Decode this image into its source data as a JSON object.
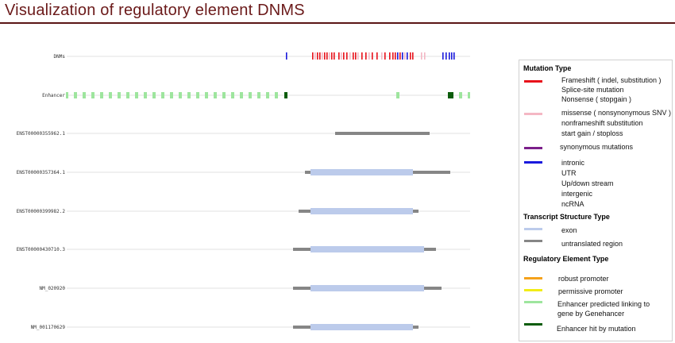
{
  "title": "Visualization of regulatory element DNMS",
  "colors": {
    "frameshift": "#e8121b",
    "missense": "#f4b7c4",
    "synonymous": "#7b1f8a",
    "intronic": "#1a1add",
    "exon": "#bccbeb",
    "utr": "#868686",
    "robust_promoter": "#f5a21b",
    "permissive_promoter": "#f2ec17",
    "enhancer_predicted": "#9ee59e",
    "enhancer_hit": "#0b5c0b",
    "title": "#6b1a1a"
  },
  "tracks": {
    "dnms": {
      "label": "DNMs",
      "marks": [
        {
          "x": 360,
          "type": "intronic"
        },
        {
          "x": 393,
          "type": "frameshift"
        },
        {
          "x": 396,
          "type": "missense"
        },
        {
          "x": 399,
          "type": "frameshift"
        },
        {
          "x": 402,
          "type": "frameshift"
        },
        {
          "x": 405,
          "type": "missense"
        },
        {
          "x": 408,
          "type": "frameshift"
        },
        {
          "x": 411,
          "type": "frameshift"
        },
        {
          "x": 414,
          "type": "missense"
        },
        {
          "x": 417,
          "type": "frameshift"
        },
        {
          "x": 420,
          "type": "frameshift"
        },
        {
          "x": 426,
          "type": "frameshift"
        },
        {
          "x": 429,
          "type": "missense"
        },
        {
          "x": 432,
          "type": "frameshift"
        },
        {
          "x": 436,
          "type": "frameshift"
        },
        {
          "x": 440,
          "type": "missense"
        },
        {
          "x": 444,
          "type": "frameshift"
        },
        {
          "x": 447,
          "type": "frameshift"
        },
        {
          "x": 450,
          "type": "missense"
        },
        {
          "x": 455,
          "type": "frameshift"
        },
        {
          "x": 460,
          "type": "frameshift"
        },
        {
          "x": 464,
          "type": "missense"
        },
        {
          "x": 468,
          "type": "frameshift"
        },
        {
          "x": 474,
          "type": "frameshift"
        },
        {
          "x": 480,
          "type": "missense"
        },
        {
          "x": 484,
          "type": "frameshift"
        },
        {
          "x": 490,
          "type": "frameshift"
        },
        {
          "x": 494,
          "type": "frameshift"
        },
        {
          "x": 497,
          "type": "frameshift"
        },
        {
          "x": 500,
          "type": "intronic"
        },
        {
          "x": 503,
          "type": "frameshift"
        },
        {
          "x": 506,
          "type": "intronic"
        },
        {
          "x": 509,
          "type": "missense"
        },
        {
          "x": 512,
          "type": "intronic"
        },
        {
          "x": 516,
          "type": "frameshift"
        },
        {
          "x": 519,
          "type": "frameshift"
        },
        {
          "x": 530,
          "type": "missense"
        },
        {
          "x": 534,
          "type": "missense"
        },
        {
          "x": 557,
          "type": "intronic"
        },
        {
          "x": 561,
          "type": "intronic"
        },
        {
          "x": 565,
          "type": "intronic"
        },
        {
          "x": 568,
          "type": "intronic"
        },
        {
          "x": 571,
          "type": "intronic"
        }
      ]
    },
    "enhancer": {
      "label": "Enhancer",
      "blocks": [
        {
          "x": 83,
          "w": 3,
          "type": "enhancer_predicted"
        },
        {
          "x": 93,
          "w": 4,
          "type": "enhancer_predicted"
        },
        {
          "x": 104,
          "w": 4,
          "type": "enhancer_predicted"
        },
        {
          "x": 115,
          "w": 4,
          "type": "enhancer_predicted"
        },
        {
          "x": 126,
          "w": 4,
          "type": "enhancer_predicted"
        },
        {
          "x": 137,
          "w": 4,
          "type": "enhancer_predicted"
        },
        {
          "x": 148,
          "w": 4,
          "type": "enhancer_predicted"
        },
        {
          "x": 159,
          "w": 4,
          "type": "enhancer_predicted"
        },
        {
          "x": 170,
          "w": 4,
          "type": "enhancer_predicted"
        },
        {
          "x": 181,
          "w": 4,
          "type": "enhancer_predicted"
        },
        {
          "x": 192,
          "w": 4,
          "type": "enhancer_predicted"
        },
        {
          "x": 203,
          "w": 4,
          "type": "enhancer_predicted"
        },
        {
          "x": 214,
          "w": 4,
          "type": "enhancer_predicted"
        },
        {
          "x": 225,
          "w": 4,
          "type": "enhancer_predicted"
        },
        {
          "x": 236,
          "w": 4,
          "type": "enhancer_predicted"
        },
        {
          "x": 247,
          "w": 4,
          "type": "enhancer_predicted"
        },
        {
          "x": 258,
          "w": 4,
          "type": "enhancer_predicted"
        },
        {
          "x": 269,
          "w": 4,
          "type": "enhancer_predicted"
        },
        {
          "x": 280,
          "w": 4,
          "type": "enhancer_predicted"
        },
        {
          "x": 291,
          "w": 4,
          "type": "enhancer_predicted"
        },
        {
          "x": 302,
          "w": 4,
          "type": "enhancer_predicted"
        },
        {
          "x": 313,
          "w": 4,
          "type": "enhancer_predicted"
        },
        {
          "x": 324,
          "w": 4,
          "type": "enhancer_predicted"
        },
        {
          "x": 335,
          "w": 4,
          "type": "enhancer_predicted"
        },
        {
          "x": 346,
          "w": 4,
          "type": "enhancer_predicted"
        },
        {
          "x": 358,
          "w": 4,
          "type": "enhancer_hit"
        },
        {
          "x": 499,
          "w": 4,
          "type": "enhancer_predicted"
        },
        {
          "x": 564,
          "w": 7,
          "type": "enhancer_hit"
        },
        {
          "x": 578,
          "w": 4,
          "type": "enhancer_predicted"
        },
        {
          "x": 589,
          "w": 3,
          "type": "enhancer_predicted"
        }
      ]
    },
    "transcripts": [
      {
        "label": "ENST00000355962.1",
        "utr": [
          422,
          541
        ],
        "exon": null
      },
      {
        "label": "ENST00000357364.1",
        "utr": [
          384,
          567
        ],
        "exon": [
          391,
          520
        ]
      },
      {
        "label": "ENST00000399982.2",
        "utr": [
          376,
          527
        ],
        "exon": [
          391,
          520
        ]
      },
      {
        "label": "ENST00000430710.3",
        "utr": [
          369,
          549
        ],
        "exon": [
          391,
          534
        ]
      },
      {
        "label": "NM_020920",
        "utr": [
          369,
          556
        ],
        "exon": [
          391,
          534
        ]
      },
      {
        "label": "NM_001170629",
        "utr": [
          369,
          527
        ],
        "exon": [
          391,
          520
        ]
      }
    ]
  },
  "legend": {
    "mutation_type": {
      "header": "Mutation Type",
      "items": [
        {
          "color": "frameshift",
          "lines": [
            "Frameshift ( indel, substitution )",
            "Splice-site mutation",
            "Nonsense ( stopgain )"
          ]
        },
        {
          "color": "missense",
          "lines": [
            "missense ( nonsynonymous SNV )",
            "nonframeshift substitution",
            "start gain / stoploss"
          ]
        },
        {
          "color": "synonymous",
          "lines": [
            "synonymous mutations"
          ]
        },
        {
          "color": "intronic",
          "lines": [
            "intronic",
            "UTR",
            "Up/down stream",
            "intergenic",
            "ncRNA"
          ]
        }
      ]
    },
    "transcript_structure": {
      "header": "Transcript Structure Type",
      "items": [
        {
          "color": "exon",
          "lines": [
            "exon"
          ]
        },
        {
          "color": "utr",
          "lines": [
            "untranslated region"
          ]
        }
      ]
    },
    "regulatory_element": {
      "header": "Regulatory Element Type",
      "items": [
        {
          "color": "robust_promoter",
          "lines": [
            "robust promoter"
          ]
        },
        {
          "color": "permissive_promoter",
          "lines": [
            "permissive promoter"
          ]
        },
        {
          "color": "enhancer_predicted",
          "lines": [
            "Enhancer predicted linking to",
            "gene by Genehancer"
          ]
        },
        {
          "color": "enhancer_hit",
          "lines": [
            "Enhancer hit by mutation"
          ]
        }
      ]
    }
  }
}
